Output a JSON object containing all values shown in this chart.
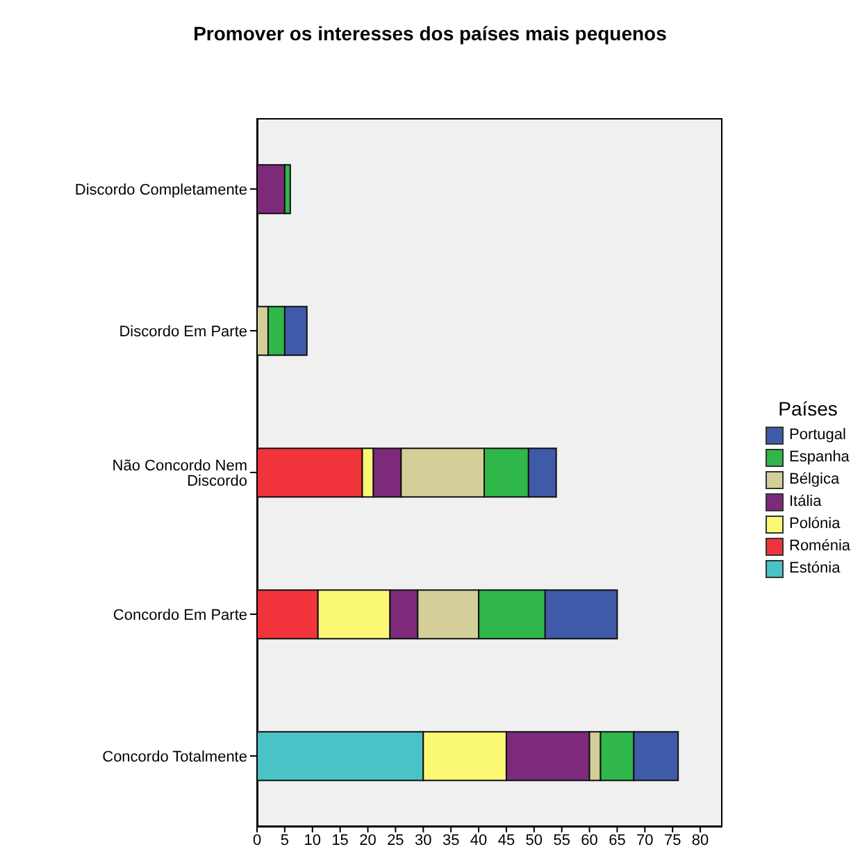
{
  "chart_data": {
    "type": "bar",
    "orientation": "horizontal",
    "stacked": true,
    "title": "Promover os interesses dos países mais pequenos",
    "legend_title": "Países",
    "legend": "right",
    "grid": false,
    "categories": [
      "Discordo Completamente",
      "Discordo Em Parte",
      "Não Concordo Nem Discordo",
      "Concordo Em Parte",
      "Concordo Totalmente"
    ],
    "xlim": [
      0,
      84
    ],
    "xticks": [
      0,
      5,
      10,
      15,
      20,
      25,
      30,
      35,
      40,
      45,
      50,
      55,
      60,
      65,
      70,
      75,
      80
    ],
    "series": [
      {
        "name": "Estónia",
        "color": "#4bc3c6",
        "values": [
          null,
          null,
          null,
          null,
          30
        ]
      },
      {
        "name": "Roménia",
        "color": "#f1343b",
        "values": [
          null,
          null,
          19,
          11,
          null
        ]
      },
      {
        "name": "Polónia",
        "color": "#fbf874",
        "values": [
          null,
          null,
          2,
          13,
          15
        ]
      },
      {
        "name": "Itália",
        "color": "#7d2a7b",
        "values": [
          5,
          null,
          5,
          5,
          15
        ]
      },
      {
        "name": "Bélgica",
        "color": "#d4cf99",
        "values": [
          null,
          2,
          15,
          11,
          2
        ]
      },
      {
        "name": "Espanha",
        "color": "#2fb74a",
        "values": [
          1,
          3,
          8,
          12,
          6
        ]
      },
      {
        "name": "Portugal",
        "color": "#3f5aa8",
        "values": [
          null,
          4,
          5,
          13,
          8
        ]
      }
    ]
  }
}
